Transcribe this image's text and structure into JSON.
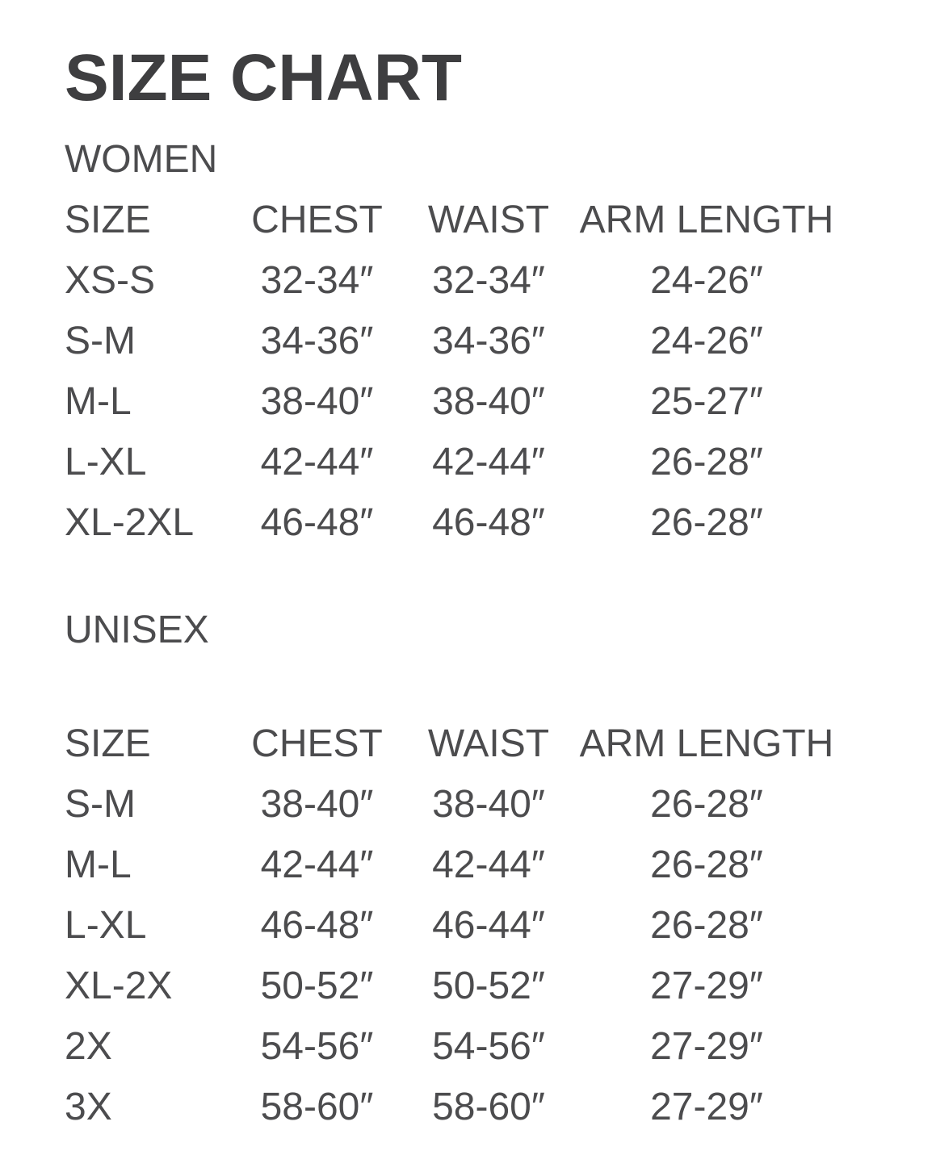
{
  "title": "SIZE CHART",
  "colors": {
    "background": "#ffffff",
    "title_text": "#3e3e40",
    "body_text": "#4c4c4e"
  },
  "sections": [
    {
      "heading": "WOMEN",
      "columns": [
        "SIZE",
        "CHEST",
        "WAIST",
        "ARM LENGTH"
      ],
      "rows": [
        [
          "XS-S",
          "32-34″",
          "32-34″",
          "24-26″"
        ],
        [
          "S-M",
          "34-36″",
          "34-36″",
          "24-26″"
        ],
        [
          "M-L",
          "38-40″",
          "38-40″",
          "25-27″"
        ],
        [
          "L-XL",
          "42-44″",
          "42-44″",
          "26-28″"
        ],
        [
          "XL-2XL",
          "46-48″",
          "46-48″",
          "26-28″"
        ]
      ]
    },
    {
      "heading": "UNISEX",
      "columns": [
        "SIZE",
        "CHEST",
        "WAIST",
        "ARM LENGTH"
      ],
      "rows": [
        [
          "S-M",
          "38-40″",
          "38-40″",
          "26-28″"
        ],
        [
          "M-L",
          "42-44″",
          "42-44″",
          "26-28″"
        ],
        [
          "L-XL",
          "46-48″",
          "46-44″",
          "26-28″"
        ],
        [
          "XL-2X",
          "50-52″",
          "50-52″",
          "27-29″"
        ],
        [
          "2X",
          "54-56″",
          "54-56″",
          "27-29″"
        ],
        [
          "3X",
          "58-60″",
          "58-60″",
          "27-29″"
        ]
      ]
    }
  ]
}
